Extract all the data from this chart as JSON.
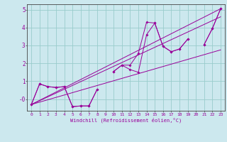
{
  "xlabel": "Windchill (Refroidissement éolien,°C)",
  "background_color": "#cce8ee",
  "grid_color": "#99cccc",
  "line_color": "#990099",
  "axis_color": "#444444",
  "xlim": [
    -0.5,
    23.5
  ],
  "ylim": [
    -0.65,
    5.3
  ],
  "xticks": [
    0,
    1,
    2,
    3,
    4,
    5,
    6,
    7,
    8,
    9,
    10,
    11,
    12,
    13,
    14,
    15,
    16,
    17,
    18,
    19,
    20,
    21,
    22,
    23
  ],
  "yticks": [
    0,
    1,
    2,
    3,
    4,
    5
  ],
  "ytick_labels": [
    "-0",
    "1",
    "2",
    "3",
    "4",
    "5"
  ],
  "series_data": [
    [
      0,
      1,
      2,
      3,
      4,
      5,
      6,
      7,
      8,
      9,
      10,
      11,
      12,
      13,
      14,
      15,
      16,
      17,
      18,
      19,
      20,
      21,
      22,
      23
    ],
    [
      -0.3,
      0.85,
      0.7,
      0.65,
      0.7,
      -0.42,
      -0.38,
      -0.38,
      0.55,
      null,
      1.55,
      1.9,
      1.65,
      1.5,
      3.6,
      4.25,
      2.95,
      2.65,
      2.8,
      3.35,
      null,
      3.05,
      3.95,
      5.05
    ],
    [
      -0.3,
      0.85,
      0.7,
      0.65,
      0.7,
      -0.42,
      -0.38,
      -0.38,
      0.55,
      null,
      1.55,
      1.9,
      1.9,
      2.55,
      4.3,
      4.25,
      2.95,
      2.65,
      2.8,
      3.35,
      null,
      3.05,
      3.95,
      5.05
    ]
  ],
  "lines": [
    {
      "x": [
        0,
        23
      ],
      "y": [
        -0.3,
        5.05
      ]
    },
    {
      "x": [
        0,
        23
      ],
      "y": [
        -0.3,
        4.6
      ]
    },
    {
      "x": [
        0,
        23
      ],
      "y": [
        -0.3,
        2.75
      ]
    }
  ]
}
